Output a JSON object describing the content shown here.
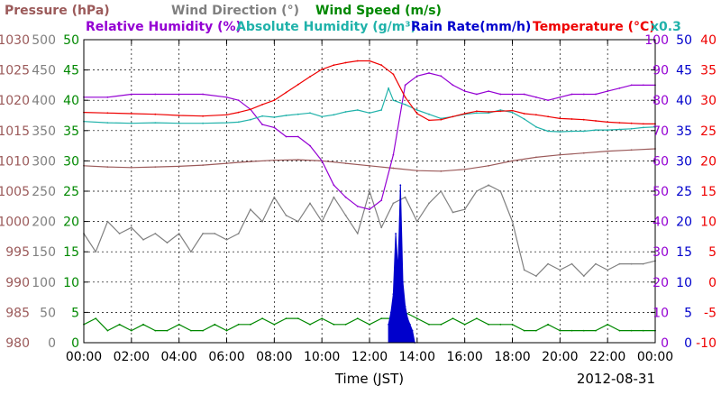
{
  "chart_data": {
    "type": "line",
    "date": "2012-08-31",
    "xlabel": "Time (JST)",
    "x_ticks": [
      "00:00",
      "02:00",
      "04:00",
      "06:00",
      "08:00",
      "10:00",
      "12:00",
      "14:00",
      "16:00",
      "18:00",
      "20:00",
      "22:00",
      "00:00"
    ],
    "x_range_hours": [
      0,
      24
    ],
    "grid": true,
    "legend": [
      {
        "label": "Pressure (hPa)",
        "color": "#9b5a5a"
      },
      {
        "label": "Wind Direction (°)",
        "color": "#808080"
      },
      {
        "label": "Wind Speed (m/s)",
        "color": "#008800"
      },
      {
        "label": "Relative Humidity (%)",
        "color": "#9400d3"
      },
      {
        "label": "Absolute Humidity (g/m³)",
        "color": "#20b2aa"
      },
      {
        "label": "Rain Rate(mm/h)",
        "color": "#0000cc"
      },
      {
        "label": "Temperature (°C)",
        "color": "#ee0000"
      },
      {
        "label": "x0.3",
        "color": "#20b2aa"
      }
    ],
    "axes": {
      "pressure": {
        "range": [
          980,
          1030
        ],
        "ticks": [
          "1030",
          "1025",
          "1020",
          "1015",
          "1010",
          "1005",
          "1000",
          "995",
          "990",
          "985",
          "980"
        ],
        "color": "#9b5a5a"
      },
      "wind_direction": {
        "range": [
          0,
          500
        ],
        "ticks": [
          "500",
          "450",
          "400",
          "350",
          "300",
          "250",
          "200",
          "150",
          "100",
          "50",
          "0"
        ],
        "color": "#808080"
      },
      "wind_speed": {
        "range": [
          0,
          50
        ],
        "ticks": [
          "50",
          "45",
          "40",
          "35",
          "30",
          "25",
          "20",
          "15",
          "10",
          "5",
          "0"
        ],
        "color": "#008800"
      },
      "relative_humidity": {
        "range": [
          0,
          100
        ],
        "ticks": [
          "100",
          "90",
          "80",
          "70",
          "60",
          "50",
          "40",
          "30",
          "20",
          "10",
          "0"
        ],
        "color": "#9400d3"
      },
      "absolute_humidity_rain": {
        "range": [
          0,
          50
        ],
        "ticks": [
          "50",
          "45",
          "40",
          "35",
          "30",
          "25",
          "20",
          "15",
          "10",
          "5",
          "0"
        ],
        "color": "#0000cc"
      },
      "temperature": {
        "range": [
          -10,
          40
        ],
        "ticks": [
          "40",
          "35",
          "30",
          "25",
          "20",
          "15",
          "10",
          "5",
          "0",
          "-5",
          "-10"
        ],
        "color": "#ee0000"
      }
    },
    "series": [
      {
        "name": "Pressure (hPa)",
        "axis": "pressure",
        "color": "#9b5a5a",
        "x": [
          0,
          1,
          2,
          3,
          4,
          5,
          6,
          7,
          8,
          9,
          10,
          11,
          12,
          13,
          14,
          15,
          16,
          17,
          18,
          19,
          20,
          21,
          22,
          23,
          24
        ],
        "y": [
          1009.2,
          1009,
          1008.9,
          1009,
          1009.1,
          1009.3,
          1009.6,
          1009.9,
          1010.1,
          1010.2,
          1010,
          1009.6,
          1009.2,
          1008.8,
          1008.4,
          1008.3,
          1008.6,
          1009.2,
          1010,
          1010.6,
          1011,
          1011.3,
          1011.6,
          1011.8,
          1012
        ]
      },
      {
        "name": "Wind Direction (°)",
        "axis": "wind_direction",
        "color": "#808080",
        "x": [
          0,
          0.5,
          1,
          1.5,
          2,
          2.5,
          3,
          3.5,
          4,
          4.5,
          5,
          5.5,
          6,
          6.5,
          7,
          7.5,
          8,
          8.5,
          9,
          9.5,
          10,
          10.5,
          11,
          11.5,
          12,
          12.5,
          13,
          13.5,
          14,
          14.5,
          15,
          15.5,
          16,
          16.5,
          17,
          17.5,
          18,
          18.5,
          19,
          19.5,
          20,
          20.5,
          21,
          21.5,
          22,
          22.5,
          23,
          23.5,
          24
        ],
        "y": [
          180,
          150,
          200,
          180,
          190,
          170,
          180,
          165,
          180,
          150,
          180,
          180,
          170,
          180,
          220,
          200,
          240,
          210,
          200,
          230,
          200,
          240,
          210,
          180,
          250,
          190,
          230,
          240,
          200,
          230,
          250,
          215,
          220,
          250,
          260,
          250,
          200,
          120,
          110,
          130,
          120,
          130,
          110,
          130,
          120,
          130,
          130,
          130,
          135
        ]
      },
      {
        "name": "Wind Speed (m/s)",
        "axis": "wind_speed",
        "color": "#008800",
        "x": [
          0,
          0.5,
          1,
          1.5,
          2,
          2.5,
          3,
          3.5,
          4,
          4.5,
          5,
          5.5,
          6,
          6.5,
          7,
          7.5,
          8,
          8.5,
          9,
          9.5,
          10,
          10.5,
          11,
          11.5,
          12,
          12.5,
          13,
          13.5,
          14,
          14.5,
          15,
          15.5,
          16,
          16.5,
          17,
          17.5,
          18,
          18.5,
          19,
          19.5,
          20,
          20.5,
          21,
          21.5,
          22,
          22.5,
          23,
          23.5,
          24
        ],
        "y": [
          3,
          4,
          2,
          3,
          2,
          3,
          2,
          2,
          3,
          2,
          2,
          3,
          2,
          3,
          3,
          4,
          3,
          4,
          4,
          3,
          4,
          3,
          3,
          4,
          3,
          4,
          4,
          5,
          4,
          3,
          3,
          4,
          3,
          4,
          3,
          3,
          3,
          2,
          2,
          3,
          2,
          2,
          2,
          2,
          3,
          2,
          2,
          2,
          2
        ]
      },
      {
        "name": "Relative Humidity (%)",
        "axis": "relative_humidity",
        "color": "#9400d3",
        "x": [
          0,
          1,
          2,
          3,
          4,
          5,
          6,
          6.5,
          7,
          7.5,
          8,
          8.5,
          9,
          9.5,
          10,
          10.5,
          11,
          11.5,
          12,
          12.5,
          13,
          13.5,
          14,
          14.5,
          15,
          15.5,
          16,
          16.5,
          17,
          17.5,
          18,
          18.5,
          19,
          19.5,
          20,
          20.5,
          21,
          21.5,
          22,
          22.5,
          23,
          23.5,
          24
        ],
        "y": [
          81,
          81,
          82,
          82,
          82,
          82,
          81,
          80,
          77,
          72,
          71,
          68,
          68,
          65,
          60,
          52,
          48,
          45,
          44,
          47,
          62,
          85,
          88,
          89,
          88,
          85,
          83,
          82,
          83,
          82,
          82,
          82,
          81,
          80,
          81,
          82,
          82,
          82,
          83,
          84,
          85,
          85,
          85
        ]
      },
      {
        "name": "Absolute Humidity (g/m³)",
        "axis": "absolute_humidity_rain",
        "color": "#20b2aa",
        "x": [
          0,
          1,
          2,
          3,
          4,
          5,
          6,
          6.5,
          7,
          7.5,
          8,
          8.5,
          9,
          9.5,
          10,
          10.5,
          11,
          11.5,
          12,
          12.5,
          12.8,
          13,
          13.5,
          14,
          14.5,
          15,
          15.5,
          16,
          16.5,
          17,
          17.5,
          18,
          18.5,
          19,
          19.5,
          20,
          20.5,
          21,
          21.5,
          22,
          22.5,
          23,
          23.5,
          24
        ],
        "y": [
          36.5,
          36.3,
          36.2,
          36.3,
          36.2,
          36.2,
          36.3,
          36.4,
          36.8,
          37.4,
          37.2,
          37.5,
          37.7,
          37.9,
          37.3,
          37.6,
          38.1,
          38.4,
          37.9,
          38.4,
          42,
          40,
          39.3,
          38.4,
          37.7,
          37,
          37.3,
          37.7,
          37.9,
          37.9,
          38.4,
          38,
          36.9,
          35.6,
          34.9,
          34.8,
          34.9,
          34.9,
          35.1,
          35.1,
          35.2,
          35.3,
          35.5,
          35.6
        ]
      },
      {
        "name": "Temperature (°C)",
        "axis": "temperature",
        "color": "#ee0000",
        "x": [
          0,
          1,
          2,
          3,
          4,
          5,
          6,
          6.5,
          7,
          7.5,
          8,
          8.5,
          9,
          9.5,
          10,
          10.5,
          11,
          11.5,
          12,
          12.5,
          13,
          13.5,
          14,
          14.5,
          15,
          15.5,
          16,
          16.5,
          17,
          17.5,
          18,
          18.5,
          19,
          19.5,
          20,
          20.5,
          21,
          21.5,
          22,
          22.5,
          23,
          23.5,
          24
        ],
        "y": [
          28,
          27.9,
          27.8,
          27.7,
          27.5,
          27.4,
          27.6,
          28,
          28.5,
          29.3,
          30,
          31.3,
          32.6,
          33.9,
          35.1,
          35.8,
          36.2,
          36.5,
          36.5,
          35.8,
          34.3,
          30.5,
          27.8,
          26.7,
          26.8,
          27.3,
          27.8,
          28.2,
          28.1,
          28.2,
          28.3,
          27.8,
          27.6,
          27.3,
          27,
          26.9,
          26.8,
          26.6,
          26.4,
          26.3,
          26.2,
          26.1,
          26.1
        ]
      },
      {
        "name": "Rain Rate(mm/h)",
        "axis": "absolute_humidity_rain",
        "color": "#0000cc",
        "x": [
          12.8,
          12.9,
          13.0,
          13.1,
          13.2,
          13.3,
          13.4,
          13.5,
          13.6,
          13.7,
          13.8,
          13.9
        ],
        "y": [
          3,
          5,
          8,
          18,
          12,
          26,
          10,
          6,
          4,
          3,
          2,
          0
        ]
      }
    ]
  }
}
